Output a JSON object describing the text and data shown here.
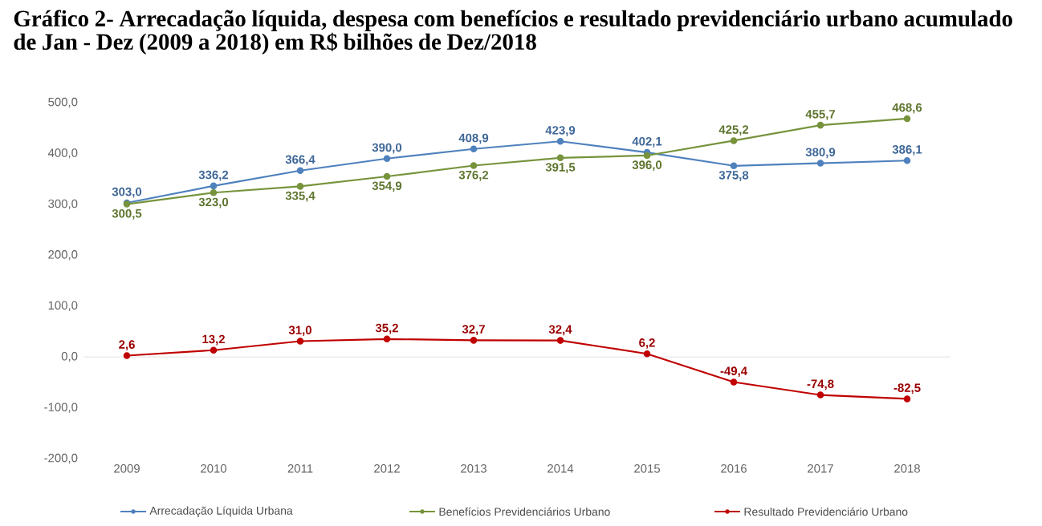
{
  "chart_data": {
    "type": "line",
    "title": "Gráfico 2- Arrecadação líquida, despesa com benefícios e resultado previdenciário urbano acumulado de Jan - Dez (2009 a 2018) em R$ bilhões de Dez/2018",
    "categories": [
      "2009",
      "2010",
      "2011",
      "2012",
      "2013",
      "2014",
      "2015",
      "2016",
      "2017",
      "2018"
    ],
    "series": [
      {
        "name": "Arrecadação Líquida Urbana",
        "color": "#4f81bd",
        "values": [
          303.0,
          336.2,
          366.4,
          390.0,
          408.9,
          423.9,
          402.1,
          375.8,
          380.9,
          386.1
        ],
        "value_labels": [
          "303,0",
          "336,2",
          "366,4",
          "390,0",
          "408,9",
          "423,9",
          "402,1",
          "375,8",
          "380,9",
          "386,1"
        ]
      },
      {
        "name": "Benefícios Previdenciários Urbano",
        "color": "#77933c",
        "values": [
          300.5,
          323.0,
          335.4,
          354.9,
          376.2,
          391.5,
          396.0,
          425.2,
          455.7,
          468.6
        ],
        "value_labels": [
          "300,5",
          "323,0",
          "335,4",
          "354,9",
          "376,2",
          "391,5",
          "396,0",
          "425,2",
          "455,7",
          "468,6"
        ]
      },
      {
        "name": "Resultado Previdenciário Urbano",
        "color": "#c00000",
        "values": [
          2.6,
          13.2,
          31.0,
          35.2,
          32.7,
          32.4,
          6.2,
          -49.4,
          -74.8,
          -82.5
        ],
        "value_labels": [
          "2,6",
          "13,2",
          "31,0",
          "35,2",
          "32,7",
          "32,4",
          "6,2",
          "-49,4",
          "-74,8",
          "-82,5"
        ]
      }
    ],
    "ylim": [
      -200,
      500
    ],
    "yticks": [
      {
        "value": -200,
        "label": "-200,0"
      },
      {
        "value": -100,
        "label": "-100,0"
      },
      {
        "value": 0,
        "label": "0,0"
      },
      {
        "value": 100,
        "label": "100,0"
      },
      {
        "value": 200,
        "label": "200,0"
      },
      {
        "value": 300,
        "label": "300,0"
      },
      {
        "value": 400,
        "label": "400,0"
      },
      {
        "value": 500,
        "label": "500,0"
      }
    ],
    "ref_lines": [
      {
        "axis": "y",
        "value": 0,
        "color": "#d9d9d9"
      }
    ],
    "legend": "bottom",
    "marker": "circle",
    "line_style": "solid",
    "grid": false
  }
}
